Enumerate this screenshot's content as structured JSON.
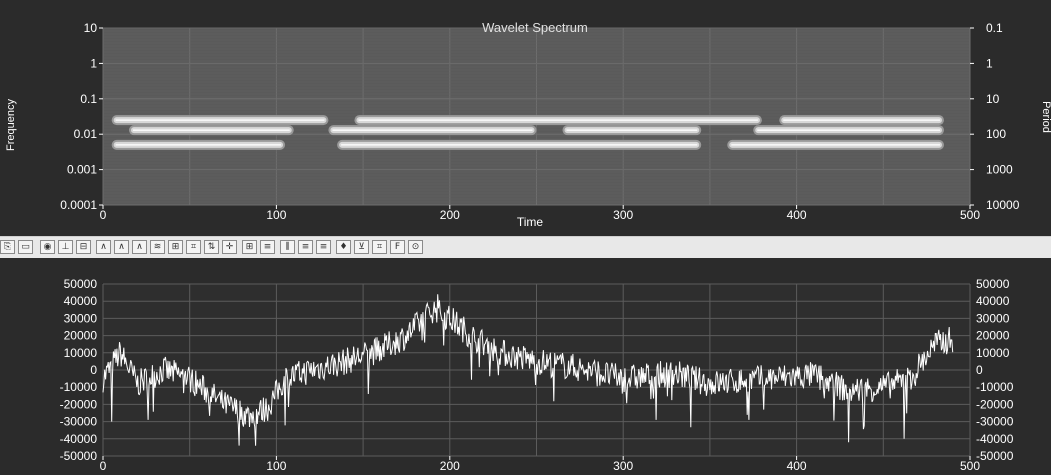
{
  "chart_data": [
    {
      "type": "heatmap",
      "title": "Wavelet Spectrum",
      "xlabel": "Time",
      "ylabel_left": "Frequency",
      "ylabel_right": "Period",
      "xlim": [
        0,
        500
      ],
      "ylim": [
        0.0001,
        10
      ],
      "yscale": "log",
      "x_ticks": [
        "0",
        "100",
        "200",
        "300",
        "400",
        "500"
      ],
      "y_ticks_left": [
        "10",
        "1",
        "0.1",
        "0.01",
        "0.001",
        "0.0001"
      ],
      "y_ticks_right": [
        "0.1",
        "1",
        "10",
        "100",
        "1000",
        "10000"
      ],
      "grid": true,
      "colors": {
        "background": "#5a5a5a",
        "ridge": "#ffffff",
        "text_title": "#e0e0e0",
        "tick_text": "#ffffff"
      },
      "ridges": [
        {
          "frequency": 0.005,
          "segments": [
            [
              5,
              105
            ],
            [
              135,
              345
            ],
            [
              360,
              485
            ]
          ]
        },
        {
          "frequency": 0.013,
          "segments": [
            [
              15,
              110
            ],
            [
              130,
              250
            ],
            [
              265,
              345
            ],
            [
              375,
              485
            ]
          ]
        },
        {
          "frequency": 0.025,
          "segments": [
            [
              5,
              130
            ],
            [
              145,
              380
            ],
            [
              390,
              485
            ]
          ]
        }
      ]
    },
    {
      "type": "line",
      "xlim": [
        0,
        500
      ],
      "ylim": [
        -50000,
        50000
      ],
      "x_ticks": [
        "0",
        "100",
        "200",
        "300",
        "400",
        "500"
      ],
      "y_ticks": [
        "50000",
        "40000",
        "30000",
        "20000",
        "10000",
        "0",
        "-10000",
        "-20000",
        "-30000",
        "-40000",
        "-50000"
      ],
      "grid": true,
      "colors": {
        "background": "#2e2e2e",
        "line": "#ffffff",
        "grid": "#606060"
      },
      "trend_points": [
        {
          "x": 0,
          "y": -5000
        },
        {
          "x": 10,
          "y": 10000
        },
        {
          "x": 20,
          "y": -8000
        },
        {
          "x": 35,
          "y": 0
        },
        {
          "x": 50,
          "y": -5000
        },
        {
          "x": 70,
          "y": -20000
        },
        {
          "x": 85,
          "y": -27000
        },
        {
          "x": 95,
          "y": -22000
        },
        {
          "x": 105,
          "y": -5000
        },
        {
          "x": 120,
          "y": 0
        },
        {
          "x": 140,
          "y": 5000
        },
        {
          "x": 160,
          "y": 12000
        },
        {
          "x": 175,
          "y": 20000
        },
        {
          "x": 190,
          "y": 35000
        },
        {
          "x": 200,
          "y": 30000
        },
        {
          "x": 215,
          "y": 18000
        },
        {
          "x": 230,
          "y": 10000
        },
        {
          "x": 250,
          "y": 5000
        },
        {
          "x": 270,
          "y": 2000
        },
        {
          "x": 300,
          "y": -5000
        },
        {
          "x": 330,
          "y": -2000
        },
        {
          "x": 350,
          "y": -8000
        },
        {
          "x": 380,
          "y": -5000
        },
        {
          "x": 410,
          "y": -3000
        },
        {
          "x": 430,
          "y": -12000
        },
        {
          "x": 450,
          "y": -10000
        },
        {
          "x": 465,
          "y": -5000
        },
        {
          "x": 480,
          "y": 15000
        },
        {
          "x": 490,
          "y": 18000
        }
      ],
      "spikes": [
        {
          "x": 5,
          "y": -30000
        },
        {
          "x": 88,
          "y": -44000
        },
        {
          "x": 430,
          "y": -42000
        },
        {
          "x": 462,
          "y": -40000
        },
        {
          "x": 193,
          "y": 44000
        }
      ]
    }
  ],
  "toolbar": {
    "buttons": [
      "⎘",
      "▭",
      "◉",
      "⊥",
      "⊟",
      "∧",
      "∧",
      "∧",
      "≋",
      "⊞",
      "⌗",
      "⇅",
      "✛",
      "⊞",
      "≡",
      "⫼",
      "≡",
      "≡",
      "♦",
      "⊻",
      "⌗",
      "F",
      "⊙"
    ]
  }
}
